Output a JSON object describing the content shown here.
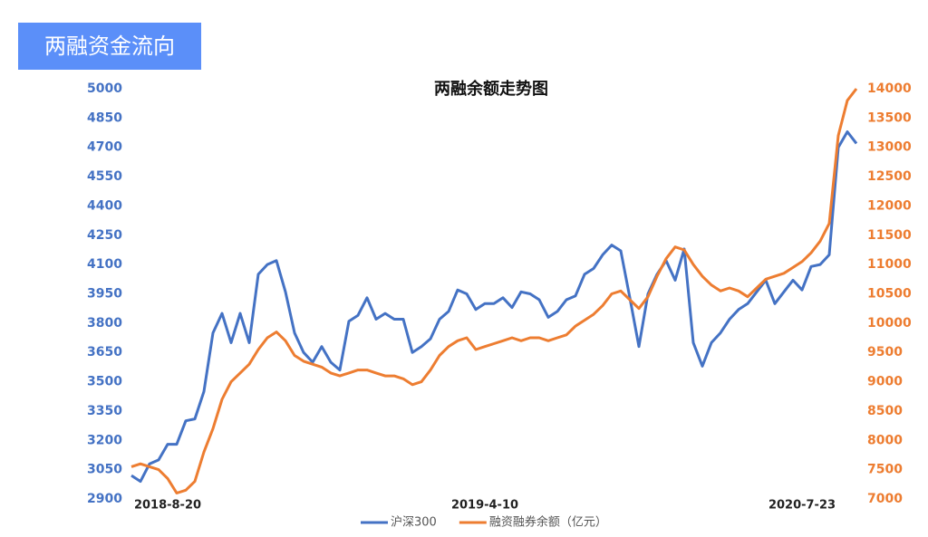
{
  "header": {
    "title": "两融资金流向"
  },
  "chart_data": {
    "type": "line",
    "title": "两融余额走势图",
    "categories": [
      null,
      null,
      null,
      null,
      "2018-8-20",
      null,
      null,
      null,
      null,
      null,
      null,
      null,
      null,
      null,
      null,
      null,
      null,
      null,
      null,
      null,
      null,
      null,
      null,
      null,
      null,
      null,
      null,
      null,
      null,
      null,
      null,
      null,
      null,
      null,
      null,
      null,
      null,
      null,
      null,
      "2019-4-10",
      null,
      null,
      null,
      null,
      null,
      null,
      null,
      null,
      null,
      null,
      null,
      null,
      null,
      null,
      null,
      null,
      null,
      null,
      null,
      null,
      null,
      null,
      null,
      null,
      null,
      null,
      null,
      null,
      null,
      null,
      null,
      null,
      null,
      null,
      "2020-7-23",
      null,
      null,
      null,
      null,
      null,
      null
    ],
    "series": [
      {
        "name": "沪深300",
        "color": "#4472c4",
        "axis": "y",
        "values": [
          3020,
          2990,
          3080,
          3100,
          3180,
          3180,
          3300,
          3310,
          3450,
          3750,
          3850,
          3700,
          3850,
          3700,
          4050,
          4100,
          4120,
          3960,
          3750,
          3650,
          3600,
          3680,
          3600,
          3560,
          3810,
          3840,
          3930,
          3820,
          3850,
          3820,
          3820,
          3650,
          3680,
          3720,
          3820,
          3860,
          3970,
          3950,
          3870,
          3900,
          3900,
          3930,
          3880,
          3960,
          3950,
          3920,
          3830,
          3860,
          3920,
          3940,
          4050,
          4080,
          4150,
          4200,
          4170,
          3930,
          3680,
          3950,
          4050,
          4120,
          4020,
          4180,
          3700,
          3580,
          3700,
          3750,
          3820,
          3870,
          3900,
          3960,
          4020,
          3900,
          3960,
          4020,
          3970,
          4090,
          4100,
          4150,
          4700,
          4780,
          4720
        ]
      },
      {
        "name": "融资融券余额（亿元）",
        "color": "#ed7d31",
        "axis": "y2",
        "values": [
          7550,
          7600,
          7550,
          7500,
          7350,
          7100,
          7150,
          7300,
          7800,
          8200,
          8700,
          9000,
          9150,
          9300,
          9550,
          9750,
          9850,
          9700,
          9450,
          9350,
          9300,
          9250,
          9150,
          9100,
          9150,
          9200,
          9200,
          9150,
          9100,
          9100,
          9050,
          8950,
          9000,
          9200,
          9450,
          9600,
          9700,
          9750,
          9550,
          9600,
          9650,
          9700,
          9750,
          9700,
          9750,
          9750,
          9700,
          9750,
          9800,
          9950,
          10050,
          10150,
          10300,
          10500,
          10550,
          10400,
          10250,
          10450,
          10800,
          11100,
          11300,
          11250,
          11000,
          10800,
          10650,
          10550,
          10600,
          10550,
          10450,
          10600,
          10750,
          10800,
          10850,
          10950,
          11050,
          11200,
          11400,
          11700,
          13200,
          13800,
          14000
        ]
      }
    ],
    "ylim": [
      2900,
      5000
    ],
    "yticks": [
      2900,
      3050,
      3200,
      3350,
      3500,
      3650,
      3800,
      3950,
      4100,
      4250,
      4400,
      4550,
      4700,
      4850,
      5000
    ],
    "y2lim": [
      7000,
      14000
    ],
    "y2ticks": [
      7000,
      7500,
      8000,
      8500,
      9000,
      9500,
      10000,
      10500,
      11000,
      11500,
      12000,
      12500,
      13000,
      13500,
      14000
    ],
    "legend": "bottom"
  }
}
